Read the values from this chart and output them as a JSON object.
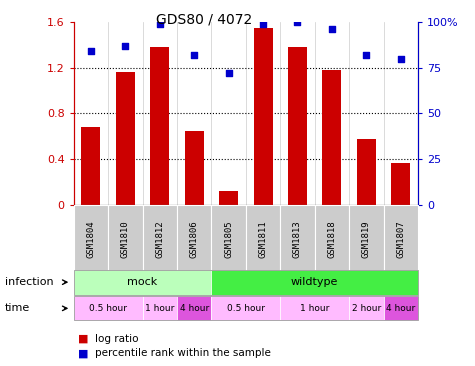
{
  "title": "GDS80 / 4072",
  "samples": [
    "GSM1804",
    "GSM1810",
    "GSM1812",
    "GSM1806",
    "GSM1805",
    "GSM1811",
    "GSM1813",
    "GSM1818",
    "GSM1819",
    "GSM1807"
  ],
  "log_ratio": [
    0.68,
    1.16,
    1.38,
    0.65,
    0.12,
    1.55,
    1.38,
    1.18,
    0.58,
    0.37
  ],
  "percentile": [
    84,
    87,
    99,
    82,
    72,
    99,
    100,
    96,
    82,
    80
  ],
  "ylim_left": [
    0,
    1.6
  ],
  "ylim_right": [
    0,
    100
  ],
  "yticks_left": [
    0,
    0.4,
    0.8,
    1.2,
    1.6
  ],
  "ytick_labels_left": [
    "0",
    "0.4",
    "0.8",
    "1.2",
    "1.6"
  ],
  "yticks_right": [
    0,
    25,
    50,
    75,
    100
  ],
  "ytick_labels_right": [
    "0",
    "25",
    "50",
    "75",
    "100%"
  ],
  "bar_color": "#cc0000",
  "dot_color": "#0000cc",
  "infection_groups": [
    {
      "label": "mock",
      "start": 0,
      "end": 4,
      "color": "#bbffbb"
    },
    {
      "label": "wildtype",
      "start": 4,
      "end": 10,
      "color": "#44ee44"
    }
  ],
  "time_groups": [
    {
      "label": "0.5 hour",
      "start": 0,
      "end": 2,
      "color": "#ffbbff"
    },
    {
      "label": "1 hour",
      "start": 2,
      "end": 3,
      "color": "#ffbbff"
    },
    {
      "label": "4 hour",
      "start": 3,
      "end": 4,
      "color": "#dd55dd"
    },
    {
      "label": "0.5 hour",
      "start": 4,
      "end": 6,
      "color": "#ffbbff"
    },
    {
      "label": "1 hour",
      "start": 6,
      "end": 8,
      "color": "#ffbbff"
    },
    {
      "label": "2 hour",
      "start": 8,
      "end": 9,
      "color": "#ffbbff"
    },
    {
      "label": "4 hour",
      "start": 9,
      "end": 10,
      "color": "#dd55dd"
    }
  ],
  "dotted_lines": [
    0.4,
    0.8,
    1.2
  ],
  "legend_items": [
    {
      "label": "log ratio",
      "color": "#cc0000"
    },
    {
      "label": "percentile rank within the sample",
      "color": "#0000cc"
    }
  ],
  "sample_bg": "#cccccc",
  "plot_bg": "#ffffff",
  "fig_bg": "#ffffff"
}
